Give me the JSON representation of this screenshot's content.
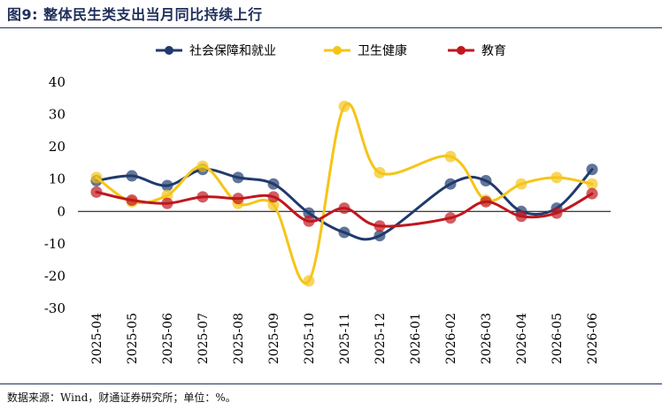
{
  "title": "图9: 整体民生类支出当月同比持续上行",
  "source": "数据来源：Wind，财通证券研究所；单位：%。",
  "chart_data": {
    "type": "line",
    "categories": [
      "2025-04",
      "2025-05",
      "2025-06",
      "2025-07",
      "2025-08",
      "2025-09",
      "2025-10",
      "2025-11",
      "2025-12",
      "2026-01",
      "2026-02",
      "2026-03",
      "2026-04",
      "2026-05",
      "2026-06"
    ],
    "ylim": [
      -30,
      40
    ],
    "yticks": [
      40,
      30,
      20,
      10,
      0,
      -10,
      -20,
      -30
    ],
    "grid": false,
    "legend_position": "top",
    "series": [
      {
        "name": "社会保障和就业",
        "color": "#1f3a6e",
        "values": [
          9.5,
          11,
          8,
          13,
          10.5,
          8.5,
          -0.5,
          -6.5,
          -7.5,
          null,
          8.5,
          9.5,
          0,
          1,
          13
        ]
      },
      {
        "name": "卫生健康",
        "color": "#f5c518",
        "values": [
          10.5,
          3,
          5,
          14,
          2.5,
          2,
          -21.5,
          32.5,
          12,
          null,
          17,
          3.5,
          8.5,
          10.5,
          8.5
        ]
      },
      {
        "name": "教育",
        "color": "#c0171e",
        "values": [
          6,
          3.5,
          2.5,
          4.5,
          4,
          4.5,
          -3,
          1,
          -4.5,
          null,
          -2,
          3,
          -1.5,
          -0.5,
          5.5
        ]
      }
    ]
  }
}
